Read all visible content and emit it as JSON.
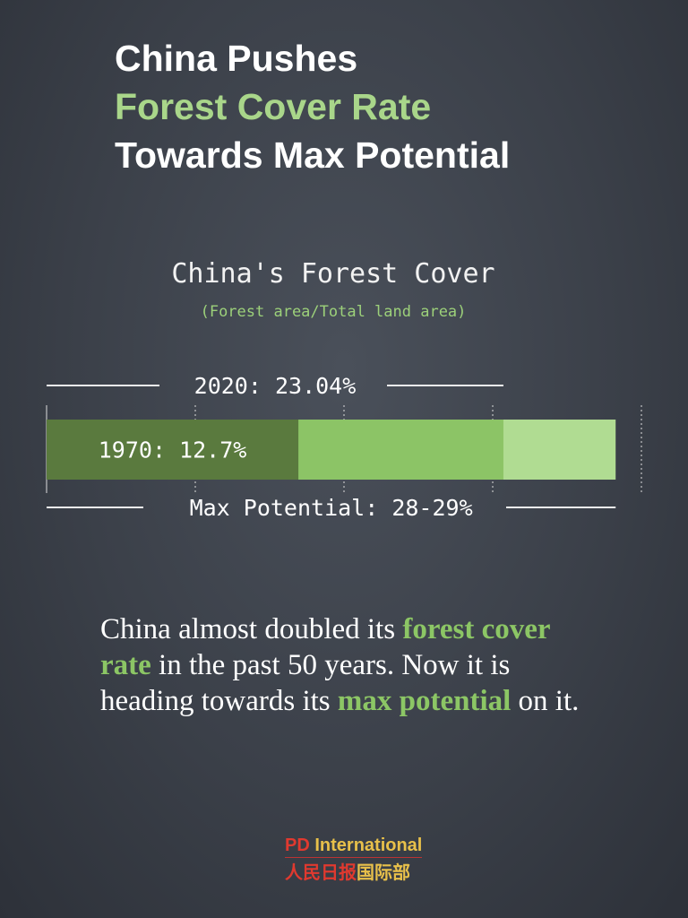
{
  "title": {
    "line1": "China Pushes",
    "line2": "Forest Cover Rate",
    "line3": "Towards Max Potential"
  },
  "chart_data": {
    "type": "bar",
    "title": "China's Forest Cover",
    "subtitle": "(Forest area/Total land area)",
    "orientation": "horizontal-stacked",
    "xlim": [
      0,
      30
    ],
    "grid": true,
    "segments": [
      {
        "label": "1970: 12.7%",
        "value": 12.7,
        "color": "#5a7a3e"
      },
      {
        "label": "2020: 23.04%",
        "value": 23.04,
        "color": "#8cc466"
      },
      {
        "label": "Max Potential: 28-29%",
        "value": 28.7,
        "color": "#b0dc92"
      }
    ]
  },
  "body": {
    "t1": "China almost doubled its ",
    "h1": "forest cover rate",
    "t2": " in the past 50 years. Now it is heading towards its ",
    "h2": "max potential",
    "t3": " on it."
  },
  "logo": {
    "en_pd": "PD",
    "en_rest": " International",
    "zh_a": "人民日报",
    "zh_b": "国际部"
  }
}
